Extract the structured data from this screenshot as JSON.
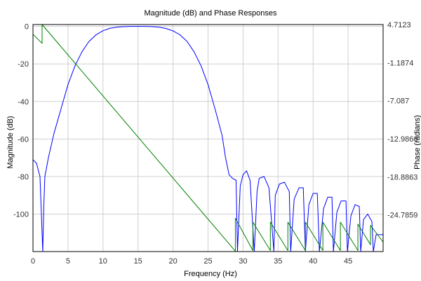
{
  "chart_data": {
    "type": "line",
    "title": "Magnitude (dB) and Phase Responses",
    "xlabel": "Frequency (Hz)",
    "ylabel_left": "Magnitude (dB)",
    "ylabel_right": "Phase (radians)",
    "xlim": [
      0,
      50
    ],
    "ylim_left": [
      -120,
      1
    ],
    "ylim_right": [
      -30.466,
      4.7123
    ],
    "grid": true,
    "x_ticks": [
      "0",
      "5",
      "10",
      "15",
      "20",
      "25",
      "30",
      "35",
      "40",
      "45"
    ],
    "x_tick_values": [
      0,
      5,
      10,
      15,
      20,
      25,
      30,
      35,
      40,
      45
    ],
    "y_ticks_left": [
      "0",
      "-20",
      "-40",
      "-60",
      "-80",
      "-100"
    ],
    "y_tick_values_left": [
      0,
      -20,
      -40,
      -60,
      -80,
      -100
    ],
    "y_ticks_right": [
      "4.7123",
      "-1.1874",
      "-7.087",
      "-12.9866",
      "-18.8863",
      "-24.7859"
    ],
    "y_tick_values_right": [
      4.7123,
      -1.1874,
      -7.087,
      -12.9866,
      -18.8863,
      -24.7859
    ],
    "colors": {
      "magnitude": "#0000ff",
      "phase": "#008000",
      "grid": "#d0d0d0"
    },
    "series": [
      {
        "axis": "left",
        "color": "#0000ff",
        "x": [
          0,
          0.5,
          1.0,
          1.4,
          1.55,
          1.7,
          2.2,
          3.0,
          4.0,
          5.0,
          6.0,
          7.0,
          8.0,
          9.0,
          10.0,
          11.0,
          12.0,
          13.0,
          14.0,
          15.0,
          16.0,
          17.0,
          18.0,
          19.0,
          20.0,
          21.0,
          22.0,
          23.0,
          24.0,
          25.0,
          26.0,
          27.0,
          27.5,
          28.0,
          28.5,
          29.0,
          29.2,
          29.6,
          30.0,
          30.5,
          31.0,
          31.6,
          32.0,
          32.3,
          33.0,
          33.7,
          34.4,
          34.6,
          35.2,
          35.9,
          36.6,
          36.8,
          37.3,
          38.0,
          38.6,
          38.9,
          39.4,
          40.0,
          40.6,
          40.9,
          41.5,
          42.1,
          42.7,
          42.9,
          43.4,
          44.0,
          44.7,
          44.9,
          45.4,
          46.0,
          46.6,
          46.8,
          47.2,
          47.8,
          48.4,
          48.6,
          49.0,
          50.0
        ],
        "y": [
          -71,
          -73,
          -80,
          -120,
          -95,
          -80,
          -70,
          -57,
          -44,
          -31,
          -21,
          -13.5,
          -8,
          -4.5,
          -2.3,
          -1,
          -0.4,
          -0.1,
          0,
          0,
          0,
          -0.1,
          -0.4,
          -1.1,
          -2.4,
          -4.5,
          -8,
          -13.5,
          -21,
          -31,
          -44,
          -58,
          -70,
          -79,
          -81,
          -82,
          -120,
          -85,
          -79,
          -77,
          -82,
          -120,
          -88,
          -81,
          -80,
          -86,
          -120,
          -90,
          -84,
          -83,
          -88,
          -120,
          -92,
          -86,
          -86,
          -120,
          -95,
          -89,
          -89,
          -120,
          -97,
          -91,
          -91,
          -120,
          -99,
          -93,
          -93,
          -120,
          -101,
          -95,
          -96,
          -120,
          -103,
          -100,
          -104,
          -120,
          -111,
          -111
        ]
      },
      {
        "axis": "right",
        "color": "#008000",
        "x": [
          0,
          1.3,
          1.3,
          28.9,
          28.9,
          31.4,
          31.4,
          33.9,
          33.9,
          36.4,
          36.4,
          38.9,
          38.9,
          41.4,
          41.4,
          43.9,
          43.9,
          46.4,
          46.4,
          48.2,
          48.2,
          50.0
        ],
        "y": [
          3.2,
          1.8,
          4.7123,
          -30.4,
          -25.3,
          -30.3,
          -25.9,
          -30.3,
          -25.9,
          -30.3,
          -25.9,
          -30.3,
          -25.9,
          -30.3,
          -25.9,
          -30.3,
          -25.9,
          -30.3,
          -26.2,
          -29.4,
          -26.4,
          -29.0
        ]
      }
    ]
  }
}
